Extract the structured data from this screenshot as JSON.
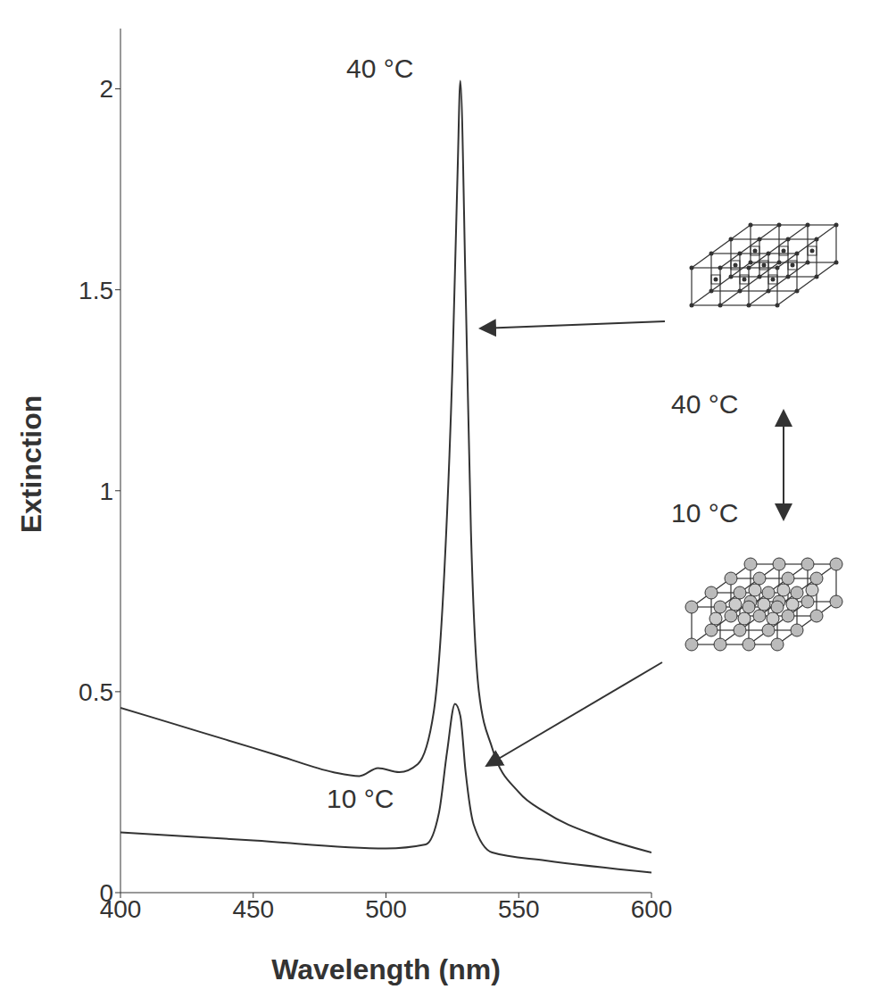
{
  "chart_data": {
    "type": "line",
    "x_label": "Wavelength (nm)",
    "y_label": "Extinction",
    "xlim": [
      400,
      600
    ],
    "ylim": [
      0,
      2.15
    ],
    "xticks": [
      400,
      450,
      500,
      550,
      600
    ],
    "yticks": [
      0,
      0.5,
      1,
      1.5,
      2
    ],
    "grid": false,
    "series": [
      {
        "name": "40 °C",
        "color": "#333333",
        "x": [
          400,
          420,
          440,
          460,
          480,
          490,
          497,
          505,
          512,
          518,
          522,
          525,
          527,
          528,
          530,
          532,
          535,
          540,
          550,
          560,
          580,
          600
        ],
        "values": [
          0.46,
          0.42,
          0.38,
          0.34,
          0.3,
          0.29,
          0.31,
          0.3,
          0.32,
          0.45,
          0.8,
          1.3,
          1.8,
          2.02,
          1.5,
          0.9,
          0.5,
          0.36,
          0.25,
          0.2,
          0.14,
          0.1
        ]
      },
      {
        "name": "10 °C",
        "color": "#333333",
        "x": [
          400,
          450,
          500,
          515,
          520,
          523,
          526,
          528,
          530,
          533,
          540,
          560,
          600
        ],
        "values": [
          0.15,
          0.13,
          0.11,
          0.12,
          0.2,
          0.35,
          0.47,
          0.44,
          0.3,
          0.17,
          0.1,
          0.08,
          0.05
        ]
      }
    ],
    "transition_labels": [
      "40 °C",
      "10 °C"
    ]
  }
}
